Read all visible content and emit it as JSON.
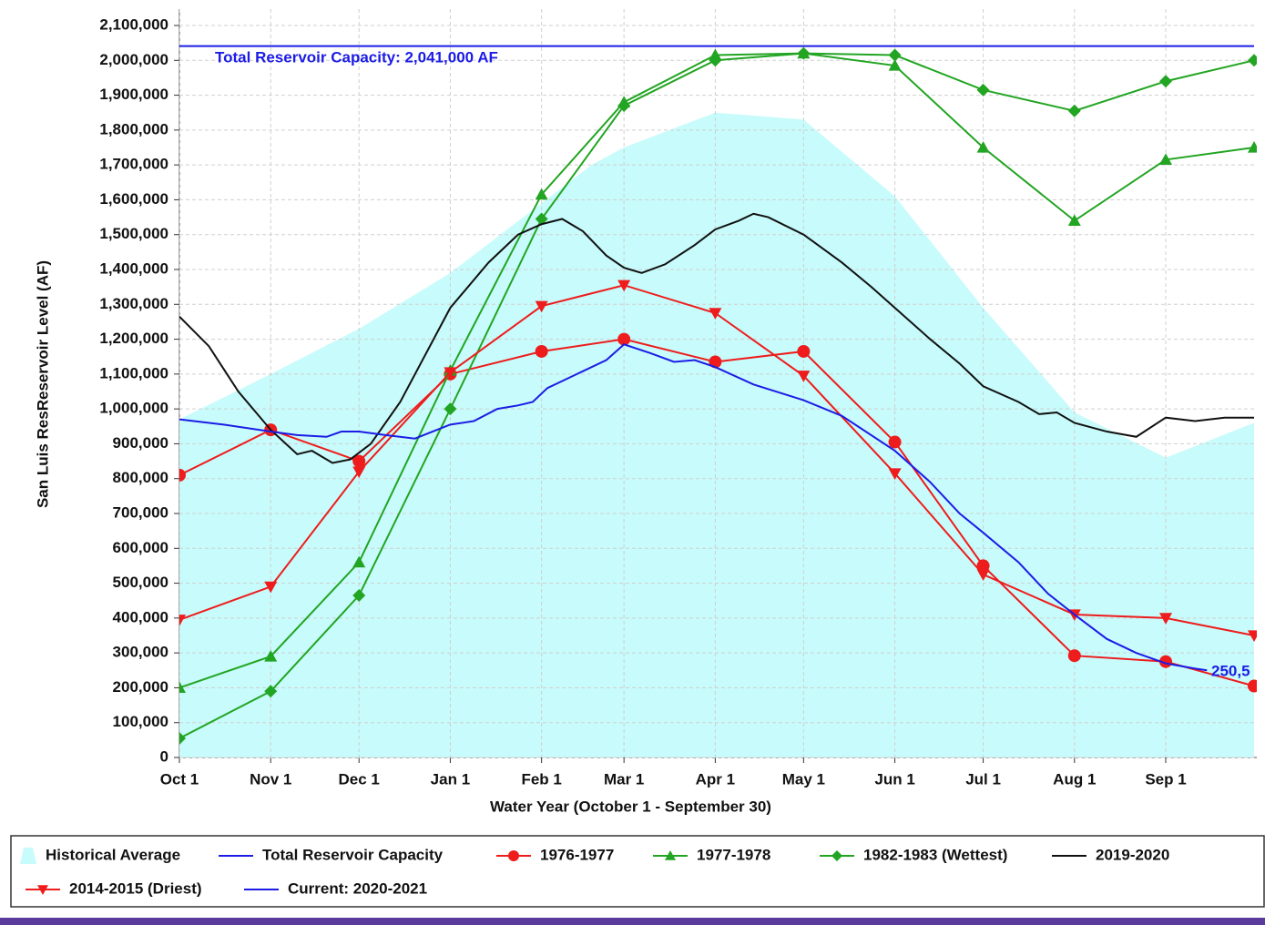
{
  "chart_data": {
    "type": "line",
    "x_label": "Water Year (October 1 - September 30)",
    "y_label": "San Luis ResReservoir Level (AF)",
    "xlim": [
      0,
      365
    ],
    "xticks": [
      {
        "value": 0,
        "label": "Oct 1"
      },
      {
        "value": 31,
        "label": "Nov 1"
      },
      {
        "value": 61,
        "label": "Dec 1"
      },
      {
        "value": 92,
        "label": "Jan 1"
      },
      {
        "value": 123,
        "label": "Feb 1"
      },
      {
        "value": 151,
        "label": "Mar 1"
      },
      {
        "value": 182,
        "label": "Apr 1"
      },
      {
        "value": 212,
        "label": "May 1"
      },
      {
        "value": 243,
        "label": "Jun 1"
      },
      {
        "value": 273,
        "label": "Jul 1"
      },
      {
        "value": 304,
        "label": "Aug 1"
      },
      {
        "value": 335,
        "label": "Sep 1"
      }
    ],
    "ylim": [
      0,
      2100000
    ],
    "yticks": [
      0,
      {
        "value": 100000,
        "label": "100,000"
      },
      {
        "value": 200000,
        "label": "200,000"
      },
      {
        "value": 300000,
        "label": "300,000"
      },
      {
        "value": 400000,
        "label": "400,000"
      },
      {
        "value": 500000,
        "label": "500,000"
      },
      {
        "value": 600000,
        "label": "600,000"
      },
      {
        "value": 700000,
        "label": "700,000"
      },
      {
        "value": 800000,
        "label": "800,000"
      },
      {
        "value": 900000,
        "label": "900,000"
      },
      {
        "value": 1000000,
        "label": "1,000,000"
      },
      {
        "value": 1100000,
        "label": "1,100,000"
      },
      {
        "value": 1200000,
        "label": "1,200,000"
      },
      {
        "value": 1300000,
        "label": "1,300,000"
      },
      {
        "value": 1400000,
        "label": "1,400,000"
      },
      {
        "value": 1500000,
        "label": "1,500,000"
      },
      {
        "value": 1600000,
        "label": "1,600,000"
      },
      {
        "value": 1700000,
        "label": "1,700,000"
      },
      {
        "value": 1800000,
        "label": "1,800,000"
      },
      {
        "value": 1900000,
        "label": "1,900,000"
      },
      {
        "value": 2000000,
        "label": "2,000,000"
      },
      {
        "value": 2100000,
        "label": "2,100,000"
      }
    ],
    "grid": true,
    "legend": "bottom",
    "annotations": [
      "Total Reservoir Capacity: 2,041,000 AF",
      "250,5"
    ],
    "series": [
      {
        "name": "Historical Average",
        "color": "#c8fbfb",
        "style": "area",
        "x": [
          0,
          31,
          61,
          92,
          123,
          140,
          151,
          182,
          212,
          243,
          273,
          304,
          335,
          365
        ],
        "values": [
          970000,
          1100000,
          1230000,
          1390000,
          1590000,
          1700000,
          1750000,
          1850000,
          1830000,
          1610000,
          1290000,
          990000,
          860000,
          960000
        ]
      },
      {
        "name": "Total Reservoir Capacity",
        "color": "#1c1ce6",
        "style": "line",
        "x": [
          0,
          365
        ],
        "values": [
          2041000,
          2041000
        ]
      },
      {
        "name": "1976-1977",
        "color": "#ee1c1c",
        "style": "line",
        "marker": "circle",
        "x": [
          0,
          31,
          61,
          92,
          123,
          151,
          182,
          212,
          243,
          273,
          304,
          335,
          365
        ],
        "values": [
          810000,
          940000,
          850000,
          1100000,
          1165000,
          1200000,
          1135000,
          1165000,
          905000,
          550000,
          292000,
          275000,
          205000
        ]
      },
      {
        "name": "1977-1978",
        "color": "#22a522",
        "style": "line",
        "marker": "triangle",
        "x": [
          0,
          31,
          61,
          92,
          123,
          151,
          182,
          212,
          243,
          273,
          304,
          335,
          365
        ],
        "values": [
          200000,
          290000,
          560000,
          1110000,
          1615000,
          1880000,
          2015000,
          2020000,
          1985000,
          1750000,
          1540000,
          1715000,
          1750000
        ]
      },
      {
        "name": "1982-1983 (Wettest)",
        "color": "#22a522",
        "style": "line",
        "marker": "diamond",
        "x": [
          0,
          31,
          61,
          92,
          123,
          151,
          182,
          212,
          243,
          273,
          304,
          335,
          365
        ],
        "values": [
          55000,
          190000,
          465000,
          1000000,
          1545000,
          1870000,
          2000000,
          2020000,
          2015000,
          1915000,
          1855000,
          1940000,
          2000000
        ]
      },
      {
        "name": "2019-2020",
        "color": "#111111",
        "style": "line",
        "x": [
          0,
          10,
          20,
          31,
          40,
          45,
          52,
          58,
          65,
          75,
          92,
          105,
          115,
          123,
          130,
          137,
          145,
          151,
          157,
          165,
          175,
          182,
          190,
          195,
          200,
          212,
          225,
          235,
          243,
          255,
          265,
          273,
          285,
          292,
          298,
          304,
          315,
          325,
          335,
          345,
          355,
          365
        ],
        "values": [
          1265000,
          1180000,
          1050000,
          940000,
          870000,
          880000,
          845000,
          855000,
          900000,
          1020000,
          1290000,
          1420000,
          1500000,
          1530000,
          1545000,
          1510000,
          1440000,
          1405000,
          1390000,
          1415000,
          1470000,
          1515000,
          1540000,
          1560000,
          1550000,
          1500000,
          1420000,
          1350000,
          1290000,
          1200000,
          1130000,
          1065000,
          1020000,
          985000,
          990000,
          960000,
          935000,
          920000,
          975000,
          965000,
          975000,
          975000
        ]
      },
      {
        "name": "2014-2015 (Driest)",
        "color": "#ee1c1c",
        "style": "line",
        "marker": "triangle-down",
        "x": [
          0,
          31,
          61,
          92,
          123,
          151,
          182,
          212,
          243,
          273,
          304,
          335,
          365
        ],
        "values": [
          395000,
          490000,
          820000,
          1105000,
          1295000,
          1355000,
          1275000,
          1095000,
          815000,
          525000,
          410000,
          400000,
          350000
        ]
      },
      {
        "name": "Current: 2020-2021",
        "color": "#1c1ce6",
        "style": "line",
        "x": [
          0,
          15,
          31,
          40,
          50,
          55,
          61,
          70,
          80,
          92,
          100,
          108,
          115,
          120,
          125,
          135,
          145,
          151,
          160,
          168,
          175,
          182,
          195,
          212,
          225,
          243,
          255,
          265,
          273,
          285,
          295,
          304,
          315,
          325,
          335,
          345,
          349
        ],
        "values": [
          970000,
          955000,
          935000,
          925000,
          920000,
          935000,
          935000,
          925000,
          915000,
          955000,
          965000,
          1000000,
          1010000,
          1020000,
          1060000,
          1100000,
          1140000,
          1185000,
          1160000,
          1135000,
          1140000,
          1120000,
          1070000,
          1025000,
          980000,
          880000,
          790000,
          700000,
          645000,
          560000,
          470000,
          410000,
          340000,
          300000,
          270000,
          255000,
          250000
        ]
      }
    ]
  }
}
